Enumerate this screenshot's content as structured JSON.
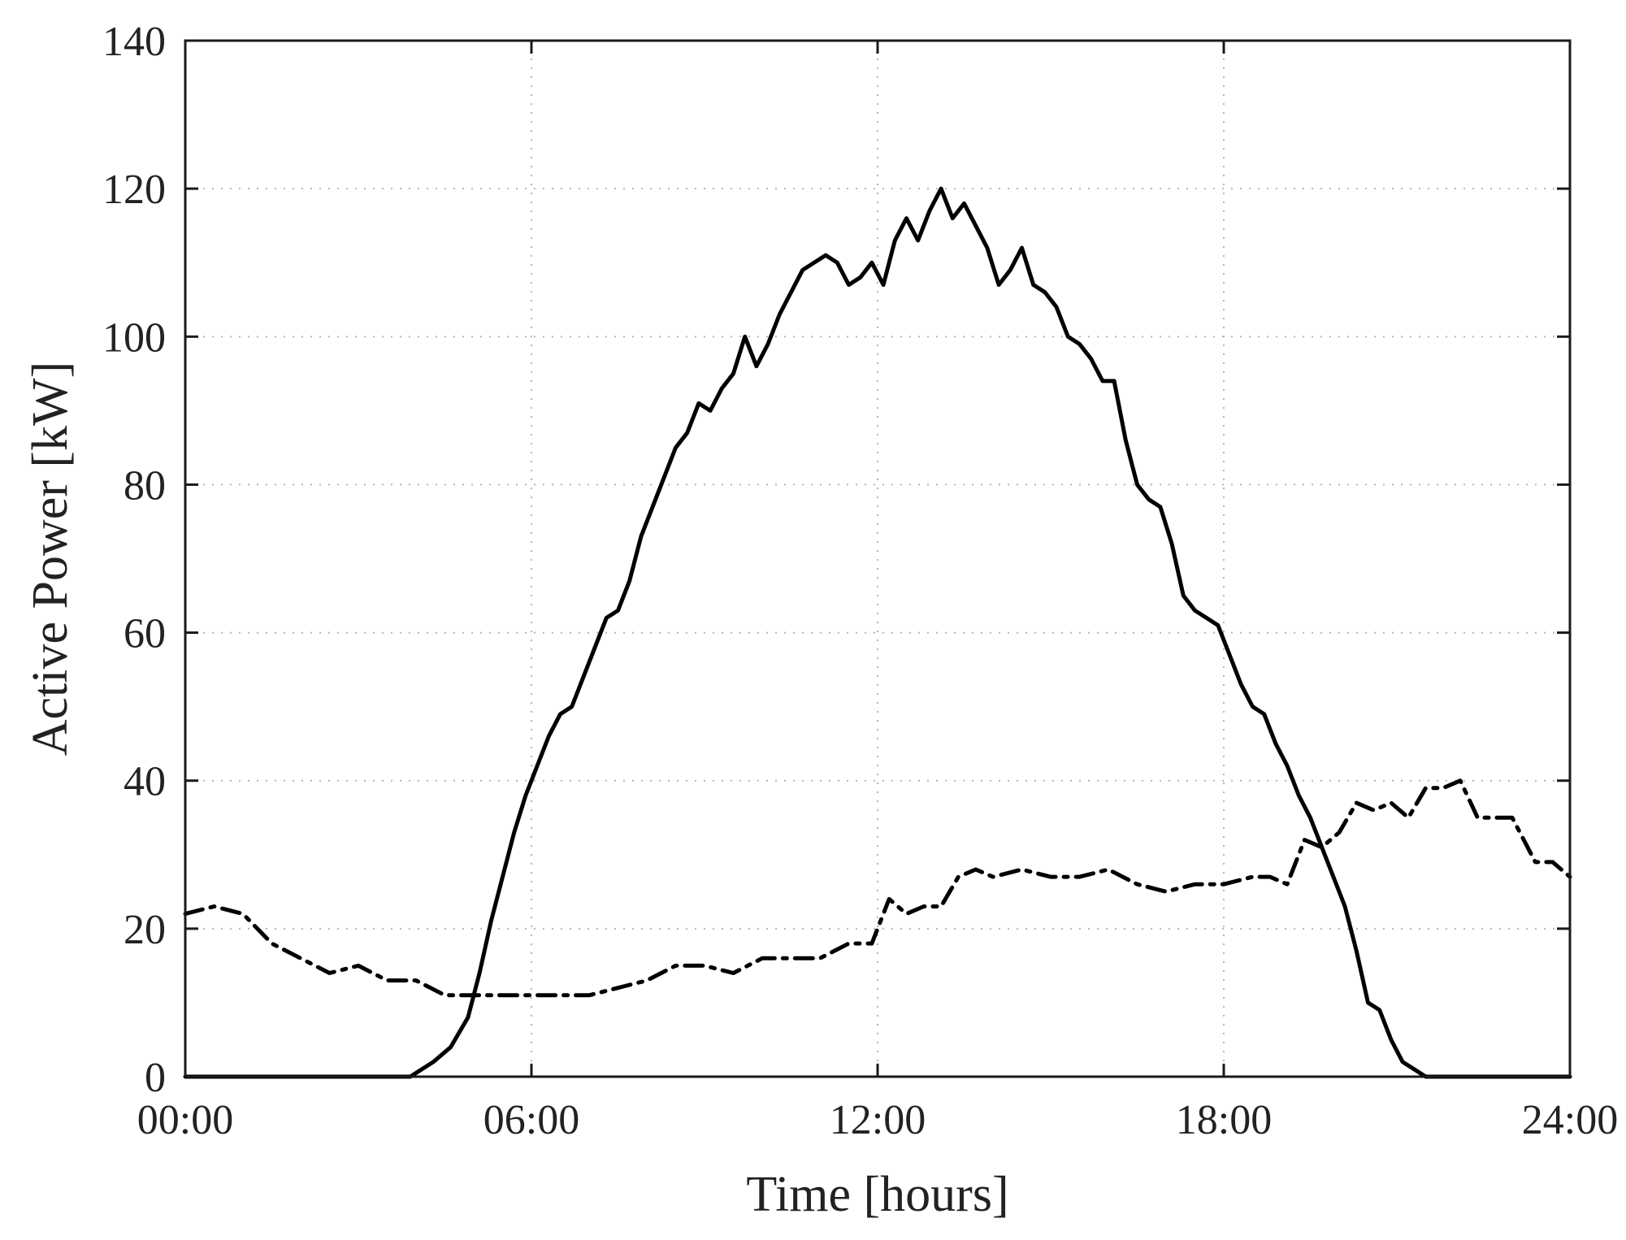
{
  "chart_data": {
    "type": "line",
    "title": "",
    "xlabel": "Time [hours]",
    "ylabel": "Active Power [kW]",
    "xlim": [
      0,
      24
    ],
    "ylim": [
      0,
      140
    ],
    "grid": true,
    "x_tick_labels": [
      "00:00",
      "06:00",
      "12:00",
      "18:00",
      "24:00"
    ],
    "y_tick_labels": [
      "0",
      "20",
      "40",
      "60",
      "80",
      "100",
      "120",
      "140"
    ],
    "x_ticks": [
      0,
      6,
      12,
      18,
      24
    ],
    "y_ticks": [
      0,
      20,
      40,
      60,
      80,
      100,
      120,
      140
    ],
    "series": [
      {
        "style": "solid",
        "color": "#000000",
        "x": [
          0.0,
          3.5,
          3.9,
          4.3,
          4.6,
          4.9,
          5.1,
          5.3,
          5.5,
          5.7,
          5.9,
          6.1,
          6.3,
          6.5,
          6.7,
          6.9,
          7.1,
          7.3,
          7.5,
          7.7,
          7.9,
          8.1,
          8.3,
          8.5,
          8.7,
          8.9,
          9.1,
          9.3,
          9.5,
          9.7,
          9.9,
          10.1,
          10.3,
          10.5,
          10.7,
          10.9,
          11.1,
          11.3,
          11.5,
          11.7,
          11.9,
          12.1,
          12.3,
          12.5,
          12.7,
          12.9,
          13.1,
          13.3,
          13.5,
          13.7,
          13.9,
          14.1,
          14.3,
          14.5,
          14.7,
          14.9,
          15.1,
          15.3,
          15.5,
          15.7,
          15.9,
          16.1,
          16.3,
          16.5,
          16.7,
          16.9,
          17.1,
          17.3,
          17.5,
          17.7,
          17.9,
          18.1,
          18.3,
          18.5,
          18.7,
          18.9,
          19.1,
          19.3,
          19.5,
          19.7,
          19.9,
          20.1,
          20.3,
          20.5,
          20.7,
          20.9,
          21.1,
          21.3,
          21.5,
          22.0,
          24.0
        ],
        "values": [
          0,
          0,
          0,
          2,
          4,
          8,
          14,
          21,
          27,
          33,
          38,
          42,
          46,
          49,
          50,
          54,
          58,
          62,
          63,
          67,
          73,
          77,
          81,
          85,
          87,
          91,
          90,
          93,
          95,
          100,
          96,
          99,
          103,
          106,
          109,
          110,
          111,
          110,
          107,
          108,
          110,
          107,
          113,
          116,
          113,
          117,
          120,
          116,
          118,
          115,
          112,
          107,
          109,
          112,
          107,
          106,
          104,
          100,
          99,
          97,
          94,
          94,
          86,
          80,
          78,
          77,
          72,
          65,
          63,
          62,
          61,
          57,
          53,
          50,
          49,
          45,
          42,
          38,
          35,
          31,
          27,
          23,
          17,
          10,
          9,
          5,
          2,
          1,
          0,
          0,
          0
        ]
      },
      {
        "style": "dash-dot",
        "color": "#000000",
        "x": [
          0.0,
          0.5,
          1.0,
          1.5,
          2.0,
          2.5,
          3.0,
          3.5,
          4.0,
          4.5,
          5.0,
          5.5,
          6.0,
          6.5,
          7.0,
          7.5,
          8.0,
          8.5,
          9.0,
          9.5,
          10.0,
          10.5,
          11.0,
          11.5,
          11.9,
          12.2,
          12.5,
          12.8,
          13.1,
          13.4,
          13.7,
          14.0,
          14.5,
          15.0,
          15.5,
          16.0,
          16.5,
          17.0,
          17.5,
          18.0,
          18.5,
          18.8,
          19.1,
          19.4,
          19.7,
          20.0,
          20.3,
          20.6,
          20.9,
          21.2,
          21.5,
          21.8,
          22.1,
          22.4,
          22.7,
          23.0,
          23.4,
          23.7,
          24.0
        ],
        "values": [
          22,
          23,
          22,
          18,
          16,
          14,
          15,
          13,
          13,
          11,
          11,
          11,
          11,
          11,
          11,
          12,
          13,
          15,
          15,
          14,
          16,
          16,
          16,
          18,
          18,
          24,
          22,
          23,
          23,
          27,
          28,
          27,
          28,
          27,
          27,
          28,
          26,
          25,
          26,
          26,
          27,
          27,
          26,
          32,
          31,
          33,
          37,
          36,
          37,
          35,
          39,
          39,
          40,
          35,
          35,
          35,
          29,
          29,
          27
        ]
      }
    ]
  }
}
